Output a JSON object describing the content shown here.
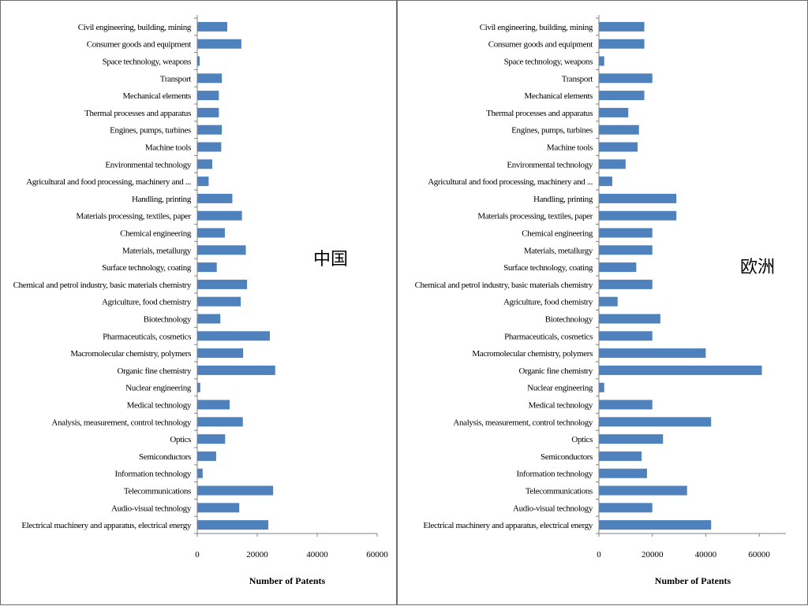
{
  "chart_data": [
    {
      "type": "bar",
      "orientation": "horizontal",
      "region_label": "中国",
      "xlabel": "Number of Patents",
      "xlim": [
        0,
        60000
      ],
      "xticks": [
        "0",
        "20000",
        "40000",
        "60000"
      ],
      "grid": false,
      "bar_color": "#4f81bd",
      "categories": [
        "Civil engineering, building, mining",
        "Consumer goods and equipment",
        "Space technology, weapons",
        "Transport",
        "Mechanical elements",
        "Thermal processes and apparatus",
        "Engines, pumps, turbines",
        "Machine tools",
        "Environmental technology",
        "Agricultural and food processing, machinery and ...",
        "Handling, printing",
        "Materials processing, textiles, paper",
        "Chemical engineering",
        "Materials, metallurgy",
        "Surface technology, coating",
        "Chemical and petrol industry, basic materials chemistry",
        "Agriculture, food chemistry",
        "Biotechnology",
        "Pharmaceuticals, cosmetics",
        "Macromolecular chemistry, polymers",
        "Organic fine chemistry",
        "Nuclear engineering",
        "Medical technology",
        "Analysis, measurement, control technology",
        "Optics",
        "Semiconductors",
        "Information technology",
        "Telecommunications",
        "Audio-visual technology",
        "Electrical machinery and apparatus, electrical energy"
      ],
      "values": [
        10000,
        14700,
        800,
        8200,
        7200,
        7200,
        8200,
        8000,
        5000,
        3800,
        11700,
        14900,
        9200,
        16200,
        6500,
        16600,
        14500,
        7700,
        24200,
        15300,
        26000,
        1000,
        10800,
        15200,
        9300,
        6300,
        1800,
        25300,
        14000,
        23700
      ]
    },
    {
      "type": "bar",
      "orientation": "horizontal",
      "region_label": "欧洲",
      "xlabel": "Number of Patents",
      "xlim": [
        0,
        70000
      ],
      "xticks": [
        "0",
        "20000",
        "40000",
        "60000"
      ],
      "grid": false,
      "bar_color": "#4f81bd",
      "categories": [
        "Civil engineering, building, mining",
        "Consumer goods and equipment",
        "Space technology, weapons",
        "Transport",
        "Mechanical elements",
        "Thermal processes and apparatus",
        "Engines, pumps, turbines",
        "Machine tools",
        "Environmental technology",
        "Agricultural and food processing, machinery and ...",
        "Handling, printing",
        "Materials processing, textiles, paper",
        "Chemical engineering",
        "Materials, metallurgy",
        "Surface technology, coating",
        "Chemical and petrol industry, basic materials chemistry",
        "Agriculture, food chemistry",
        "Biotechnology",
        "Pharmaceuticals, cosmetics",
        "Macromolecular chemistry, polymers",
        "Organic fine chemistry",
        "Nuclear engineering",
        "Medical technology",
        "Analysis, measurement, control technology",
        "Optics",
        "Semiconductors",
        "Information technology",
        "Telecommunications",
        "Audio-visual technology",
        "Electrical machinery and apparatus, electrical energy"
      ],
      "values": [
        17000,
        17000,
        2000,
        20000,
        17000,
        11000,
        15000,
        14500,
        10000,
        5000,
        29000,
        29000,
        20000,
        20000,
        14000,
        20000,
        7000,
        23000,
        20000,
        40000,
        61000,
        2000,
        20000,
        42000,
        24000,
        16000,
        18000,
        33000,
        20000,
        42000
      ]
    }
  ]
}
